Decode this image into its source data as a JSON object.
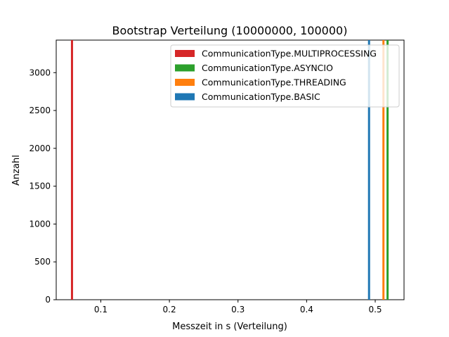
{
  "chart_data": {
    "type": "histogram",
    "title": "Bootstrap Verteilung (10000000, 100000)",
    "xlabel": "Messzeit in s (Verteilung)",
    "ylabel": "Anzahl",
    "xlim": [
      0.035,
      0.542
    ],
    "ylim": [
      0,
      3430
    ],
    "xticks": [
      0.1,
      0.2,
      0.3,
      0.4,
      0.5
    ],
    "xtick_labels": [
      "0.1",
      "0.2",
      "0.3",
      "0.4",
      "0.5"
    ],
    "yticks": [
      0,
      500,
      1000,
      1500,
      2000,
      2500,
      3000
    ],
    "ytick_labels": [
      "0",
      "500",
      "1000",
      "1500",
      "2000",
      "2500",
      "3000"
    ],
    "legend_position": "top-right",
    "series": [
      {
        "name": "CommunicationType.MULTIPROCESSING",
        "color": "#d62728",
        "x": 0.058,
        "count": 3430
      },
      {
        "name": "CommunicationType.ASYNCIO",
        "color": "#2ca02c",
        "x": 0.518,
        "count": 3430
      },
      {
        "name": "CommunicationType.THREADING",
        "color": "#ff7f0e",
        "x": 0.512,
        "count": 3430
      },
      {
        "name": "CommunicationType.BASIC",
        "color": "#1f77b4",
        "x": 0.491,
        "count": 3430
      }
    ],
    "legend_order": [
      0,
      1,
      2,
      3
    ]
  }
}
